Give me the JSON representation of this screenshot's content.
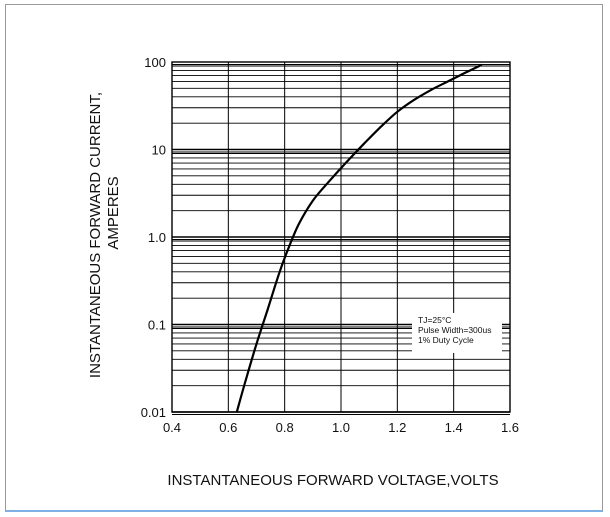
{
  "chart_data": {
    "type": "line",
    "title": "",
    "xlabel": "INSTANTANEOUS FORWARD VOLTAGE,VOLTS",
    "ylabel_lines": [
      "INSTANTANEOUS FORWARD CURRENT,",
      "AMPERES"
    ],
    "xlim": [
      0.4,
      1.6
    ],
    "ylim": [
      0.01,
      100
    ],
    "yscale": "log",
    "grid": true,
    "x_ticks": [
      0.4,
      0.6,
      0.8,
      1.0,
      1.2,
      1.4,
      1.6
    ],
    "x_tick_labels": [
      "0.4",
      "0.6",
      "0.8",
      "1.0",
      "1.2",
      "1.4",
      "1.6"
    ],
    "y_ticks": [
      0.01,
      0.1,
      1,
      10,
      100
    ],
    "y_tick_labels": [
      "0.01",
      "0.1",
      "1.0",
      "10",
      "100"
    ],
    "series": [
      {
        "x": [
          0.63,
          0.66,
          0.7,
          0.74,
          0.78,
          0.81,
          0.85,
          0.9,
          0.96,
          1.02,
          1.08,
          1.14,
          1.2,
          1.26,
          1.32,
          1.38,
          1.44,
          1.5
        ],
        "y": [
          0.01,
          0.022,
          0.06,
          0.15,
          0.38,
          0.7,
          1.4,
          2.6,
          4.4,
          7.2,
          11.5,
          18,
          27,
          37,
          48,
          60,
          75,
          93
        ]
      }
    ],
    "annotations": [
      "TJ=25°C",
      "Pulse Width=300us",
      "1% Duty Cycle"
    ],
    "annotation_placement": "bottom-right inside plot"
  }
}
